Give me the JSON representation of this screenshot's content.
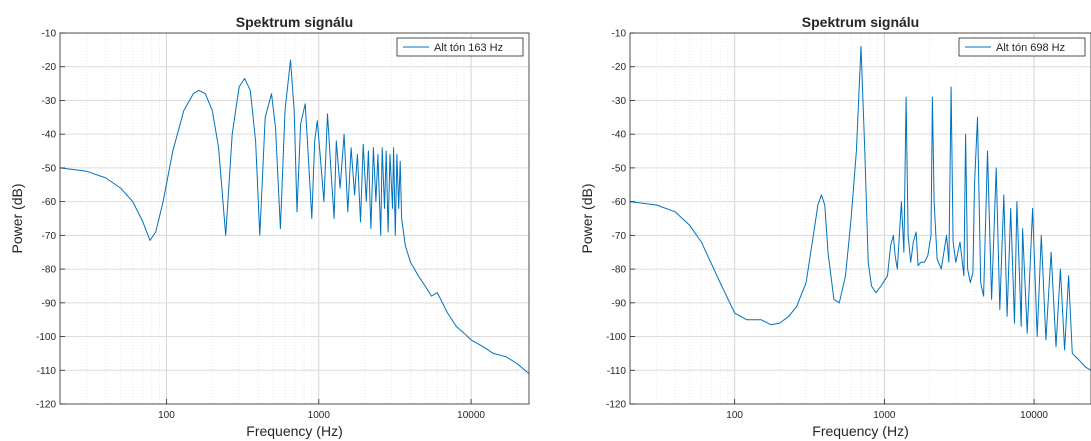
{
  "chart_data": [
    {
      "type": "line",
      "title": "Spektrum signálu",
      "xlabel": "Frequency (Hz)",
      "ylabel": "Power (dB)",
      "xscale": "log",
      "xlim": [
        20,
        24000
      ],
      "ylim": [
        -120,
        -10
      ],
      "grid": true,
      "legend_position": "top-right",
      "xticks": [
        "100",
        "1000",
        "10000"
      ],
      "yticks": [
        "-10",
        "-20",
        "-30",
        "-40",
        "-50",
        "-60",
        "-70",
        "-80",
        "-90",
        "-100",
        "-110",
        "-120"
      ],
      "series_color": "#0072BD",
      "series": [
        {
          "name": "Alt tón 163 Hz",
          "x": [
            20,
            30,
            40,
            50,
            60,
            70,
            78,
            85,
            95,
            110,
            130,
            150,
            163,
            180,
            200,
            220,
            245,
            270,
            300,
            326,
            355,
            385,
            410,
            445,
            489,
            520,
            560,
            600,
            652,
            690,
            720,
            760,
            815,
            850,
            900,
            940,
            978,
            1020,
            1080,
            1141,
            1200,
            1260,
            1304,
            1380,
            1467,
            1550,
            1630,
            1720,
            1793,
            1880,
            1956,
            2050,
            2119,
            2200,
            2282,
            2370,
            2445,
            2550,
            2608,
            2700,
            2771,
            2850,
            2934,
            3050,
            3097,
            3180,
            3260,
            3350,
            3423,
            3500,
            3700,
            4000,
            4500,
            5000,
            5500,
            6000,
            7000,
            8000,
            9000,
            10000,
            12000,
            14000,
            17000,
            20000,
            24000
          ],
          "y": [
            -50,
            -51,
            -53,
            -56,
            -60,
            -66,
            -71.5,
            -69,
            -60,
            -45,
            -33,
            -28,
            -27,
            -28,
            -33,
            -44,
            -70,
            -40,
            -26,
            -23.5,
            -27,
            -42,
            -70,
            -35,
            -28,
            -38,
            -68,
            -33,
            -18,
            -33,
            -63,
            -37,
            -31,
            -45,
            -65,
            -42,
            -36,
            -46,
            -60,
            -34,
            -50,
            -65,
            -42,
            -56,
            -40,
            -63,
            -44,
            -58,
            -46,
            -66,
            -43,
            -60,
            -45,
            -68,
            -44,
            -60,
            -46,
            -70,
            -44,
            -62,
            -45,
            -69,
            -46,
            -62,
            -44,
            -70,
            -46,
            -62,
            -48,
            -65,
            -73,
            -78,
            -82,
            -85,
            -88,
            -87,
            -93,
            -97,
            -99,
            -101,
            -103,
            -105,
            -106,
            -108,
            -111
          ]
        }
      ]
    },
    {
      "type": "line",
      "title": "Spektrum signálu",
      "xlabel": "Frequency (Hz)",
      "ylabel": "Power (dB)",
      "xscale": "log",
      "xlim": [
        20,
        24000
      ],
      "ylim": [
        -120,
        -10
      ],
      "grid": true,
      "legend_position": "top-right",
      "xticks": [
        "100",
        "1000",
        "10000"
      ],
      "yticks": [
        "-10",
        "-20",
        "-30",
        "-40",
        "-50",
        "-60",
        "-70",
        "-80",
        "-90",
        "-100",
        "-110",
        "-120"
      ],
      "series_color": "#0072BD",
      "series": [
        {
          "name": "Alt tón 698 Hz",
          "x": [
            20,
            30,
            40,
            50,
            60,
            80,
            100,
            120,
            150,
            175,
            200,
            230,
            260,
            300,
            330,
            360,
            380,
            400,
            420,
            460,
            500,
            550,
            600,
            650,
            698,
            740,
            780,
            820,
            880,
            950,
            1050,
            1100,
            1150,
            1180,
            1220,
            1300,
            1350,
            1396,
            1440,
            1500,
            1560,
            1630,
            1680,
            1750,
            1850,
            1950,
            2050,
            2094,
            2150,
            2250,
            2400,
            2500,
            2600,
            2700,
            2792,
            2880,
            3000,
            3200,
            3400,
            3490,
            3600,
            3750,
            3900,
            4000,
            4188,
            4400,
            4600,
            4886,
            5200,
            5584,
            5900,
            6282,
            6600,
            6980,
            7400,
            7678,
            8200,
            8376,
            9000,
            9772,
            10500,
            11168,
            12000,
            13000,
            14000,
            15000,
            16000,
            17000,
            18000,
            20000,
            22000,
            24000
          ],
          "y": [
            -60,
            -61,
            -63,
            -67,
            -72,
            -84,
            -93,
            -95,
            -95,
            -96.5,
            -96,
            -94,
            -91,
            -84,
            -72,
            -61,
            -58,
            -61,
            -75,
            -89,
            -90,
            -82,
            -65,
            -45,
            -14,
            -45,
            -78,
            -85,
            -87,
            -85,
            -82,
            -73,
            -70,
            -76,
            -80,
            -60,
            -75,
            -29,
            -70,
            -78,
            -72,
            -69,
            -79,
            -78,
            -78,
            -76,
            -70,
            -29,
            -60,
            -77,
            -80,
            -75,
            -70,
            -78,
            -26,
            -72,
            -78,
            -72,
            -82,
            -40,
            -80,
            -84,
            -81,
            -55,
            -35,
            -84,
            -88,
            -45,
            -89,
            -50,
            -92,
            -58,
            -94,
            -62,
            -96,
            -60,
            -97,
            -68,
            -99,
            -62,
            -100,
            -70,
            -101,
            -75,
            -103,
            -80,
            -104,
            -82,
            -105,
            -107,
            -109,
            -110
          ]
        }
      ]
    }
  ]
}
